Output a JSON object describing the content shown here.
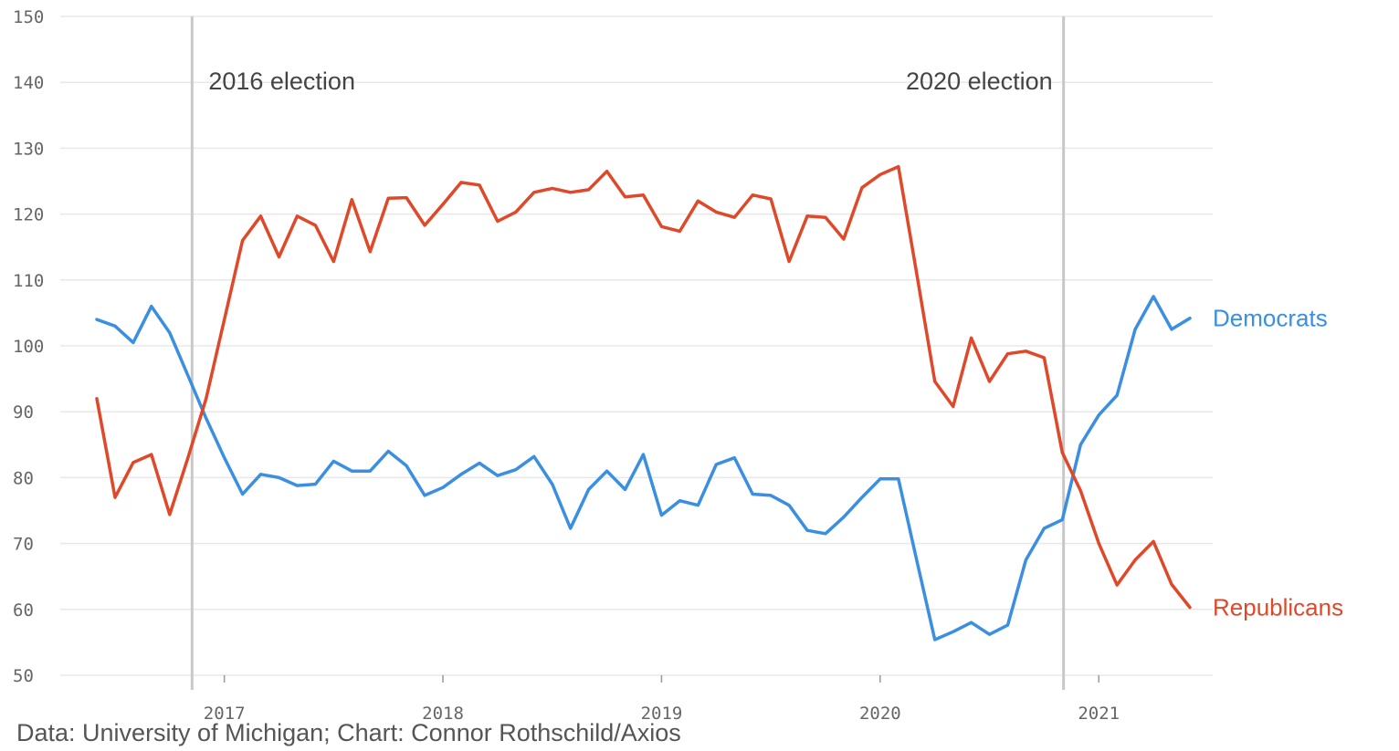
{
  "source": "Data: University of Michigan; Chart: Connor Rothschild/Axios",
  "colors": {
    "democrats": "#3b8fe0",
    "republicans": "#e0482a",
    "grid": "#e8e8e8",
    "event_line": "#c8c8c8"
  },
  "chart_data": {
    "type": "line",
    "title": "",
    "xlabel": "",
    "ylabel": "",
    "ylim": [
      50,
      150
    ],
    "yticks": [
      "50",
      "60",
      "70",
      "80",
      "90",
      "100",
      "110",
      "120",
      "130",
      "140",
      "150"
    ],
    "xticks": [
      "2017",
      "2018",
      "2019",
      "2020",
      "2021"
    ],
    "grid": true,
    "legend": "direct labels at right end of lines",
    "x": [
      "2016-06",
      "2016-07",
      "2016-08",
      "2016-09",
      "2016-10",
      "2016-11",
      "2016-12",
      "2017-01",
      "2017-02",
      "2017-03",
      "2017-04",
      "2017-05",
      "2017-06",
      "2017-07",
      "2017-08",
      "2017-09",
      "2017-10",
      "2017-11",
      "2017-12",
      "2018-01",
      "2018-02",
      "2018-03",
      "2018-04",
      "2018-05",
      "2018-06",
      "2018-07",
      "2018-08",
      "2018-09",
      "2018-10",
      "2018-11",
      "2018-12",
      "2019-01",
      "2019-02",
      "2019-03",
      "2019-04",
      "2019-05",
      "2019-06",
      "2019-07",
      "2019-08",
      "2019-09",
      "2019-10",
      "2019-11",
      "2019-12",
      "2020-01",
      "2020-02",
      "2020-03",
      "2020-04",
      "2020-05",
      "2020-06",
      "2020-07",
      "2020-08",
      "2020-09",
      "2020-10",
      "2020-11",
      "2020-12",
      "2021-01",
      "2021-02",
      "2021-03",
      "2021-04",
      "2021-05",
      "2021-06"
    ],
    "series": [
      {
        "name": "Democrats",
        "color": "#3b8fe0",
        "values": [
          104,
          103,
          100.5,
          106,
          102,
          95.5,
          89,
          83,
          77.5,
          80.5,
          80,
          78.8,
          79,
          82.5,
          81,
          81,
          84,
          81.8,
          77.3,
          78.5,
          80.5,
          82.2,
          80.3,
          81.2,
          83.2,
          79,
          72.3,
          78.2,
          81,
          78.2,
          83.5,
          74.3,
          76.5,
          75.8,
          82,
          83,
          77.5,
          77.3,
          75.8,
          72,
          71.5,
          74,
          77,
          79.8,
          79.8,
          67.5,
          55.4,
          56.6,
          58,
          56.2,
          57.6,
          67.5,
          72.3,
          73.6,
          85,
          89.5,
          92.5,
          102.5,
          107.5,
          102.5,
          104.2
        ]
      },
      {
        "name": "Republicans",
        "color": "#e0482a",
        "values": [
          92,
          77,
          82.3,
          83.5,
          74.4,
          83,
          92,
          104,
          116,
          119.7,
          113.5,
          119.7,
          118.3,
          112.8,
          122.2,
          114.3,
          122.4,
          122.5,
          118.3,
          121.5,
          124.8,
          124.4,
          118.9,
          120.3,
          123.3,
          123.9,
          123.3,
          123.7,
          126.5,
          122.6,
          122.9,
          118.1,
          117.4,
          122,
          120.3,
          119.5,
          122.9,
          122.3,
          112.8,
          119.7,
          119.5,
          116.2,
          124,
          126,
          127.2,
          111,
          94.6,
          90.8,
          101.2,
          94.6,
          98.8,
          99.2,
          98.2,
          83.8,
          78,
          70,
          63.7,
          67.5,
          70.3,
          63.8,
          60.3
        ]
      }
    ],
    "annotations": [
      {
        "label": "2016 election",
        "x": "2016-11-08"
      },
      {
        "label": "2020 election",
        "x": "2020-11-03"
      }
    ]
  }
}
